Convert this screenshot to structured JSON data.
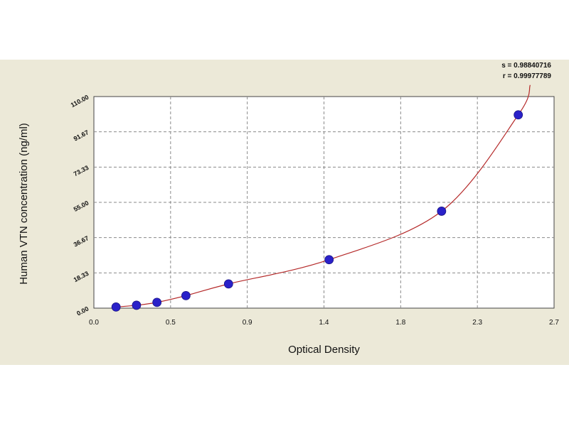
{
  "chart_data": {
    "type": "scatter",
    "xlabel": "Optical Density",
    "ylabel": "Human VTN concentration (ng/ml)",
    "x_ticks": [
      "0.0",
      "0.5",
      "0.9",
      "1.4",
      "1.8",
      "2.3",
      "2.7"
    ],
    "y_ticks": [
      "0.00",
      "18.33",
      "36.67",
      "55.00",
      "73.33",
      "91.67",
      "110.00"
    ],
    "xlim": [
      0,
      2.7
    ],
    "ylim": [
      0,
      110
    ],
    "grid": true,
    "stats": [
      "s = 0.98840716",
      "r = 0.99977789"
    ],
    "points": {
      "x": [
        0.13,
        0.25,
        0.37,
        0.54,
        0.79,
        1.38,
        2.04,
        2.49
      ],
      "y": [
        0.6,
        1.5,
        3.0,
        6.5,
        12.6,
        25.2,
        50.4,
        100.5
      ]
    },
    "colors": {
      "point": "#2a21c9",
      "curve": "#b52a2a",
      "grid": "#8a8a8a",
      "plot_bg": "#ffffff",
      "figure_bg": "#ece9d8"
    }
  }
}
